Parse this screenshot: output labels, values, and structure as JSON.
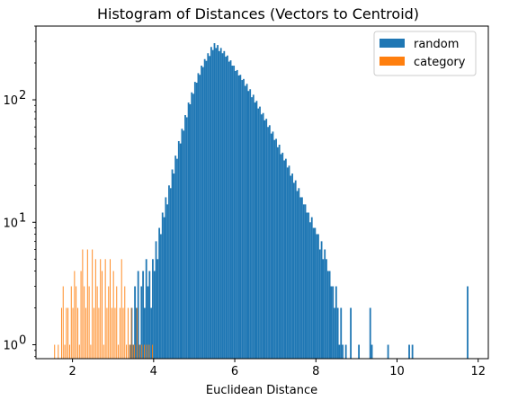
{
  "chart_data": {
    "type": "bar",
    "title": "Histogram of Distances (Vectors to Centroid)",
    "xlabel": "Euclidean Distance",
    "ylabel": "",
    "xlim": [
      1.1,
      12.25
    ],
    "ylim": [
      0.77,
      400
    ],
    "yscale": "log",
    "grid": false,
    "legend_position": "top-right",
    "x_ticks": [
      2,
      4,
      6,
      8,
      10,
      12
    ],
    "x_tick_labels": [
      "2",
      "4",
      "6",
      "8",
      "10",
      "12"
    ],
    "y_ticks": [
      1,
      10,
      100
    ],
    "y_tick_labels": [
      "10",
      "10",
      "10"
    ],
    "y_tick_exponents": [
      "0",
      "1",
      "2"
    ],
    "series": [
      {
        "name": "random",
        "color": "#1f77b4",
        "bin_width": 0.04,
        "bins": [
          [
            3.4,
            1
          ],
          [
            3.44,
            2
          ],
          [
            3.48,
            1
          ],
          [
            3.52,
            3
          ],
          [
            3.56,
            2
          ],
          [
            3.6,
            4
          ],
          [
            3.64,
            1
          ],
          [
            3.68,
            3
          ],
          [
            3.72,
            4
          ],
          [
            3.76,
            2
          ],
          [
            3.8,
            5
          ],
          [
            3.84,
            3
          ],
          [
            3.88,
            4
          ],
          [
            3.92,
            2
          ],
          [
            3.96,
            5
          ],
          [
            4.0,
            4
          ],
          [
            4.04,
            7
          ],
          [
            4.08,
            5
          ],
          [
            4.12,
            9
          ],
          [
            4.16,
            8
          ],
          [
            4.2,
            12
          ],
          [
            4.24,
            11
          ],
          [
            4.28,
            16
          ],
          [
            4.32,
            14
          ],
          [
            4.36,
            20
          ],
          [
            4.4,
            19
          ],
          [
            4.44,
            27
          ],
          [
            4.48,
            25
          ],
          [
            4.52,
            35
          ],
          [
            4.56,
            33
          ],
          [
            4.6,
            46
          ],
          [
            4.64,
            44
          ],
          [
            4.68,
            58
          ],
          [
            4.72,
            56
          ],
          [
            4.76,
            75
          ],
          [
            4.8,
            72
          ],
          [
            4.84,
            95
          ],
          [
            4.88,
            92
          ],
          [
            4.92,
            115
          ],
          [
            4.96,
            112
          ],
          [
            5.0,
            140
          ],
          [
            5.04,
            138
          ],
          [
            5.08,
            165
          ],
          [
            5.12,
            160
          ],
          [
            5.16,
            190
          ],
          [
            5.2,
            185
          ],
          [
            5.24,
            215
          ],
          [
            5.28,
            208
          ],
          [
            5.32,
            240
          ],
          [
            5.36,
            228
          ],
          [
            5.4,
            270
          ],
          [
            5.44,
            255
          ],
          [
            5.48,
            290
          ],
          [
            5.52,
            265
          ],
          [
            5.56,
            280
          ],
          [
            5.6,
            250
          ],
          [
            5.64,
            265
          ],
          [
            5.68,
            240
          ],
          [
            5.72,
            250
          ],
          [
            5.76,
            225
          ],
          [
            5.8,
            230
          ],
          [
            5.84,
            205
          ],
          [
            5.88,
            210
          ],
          [
            5.92,
            190
          ],
          [
            5.96,
            190
          ],
          [
            6.0,
            172
          ],
          [
            6.04,
            175
          ],
          [
            6.08,
            158
          ],
          [
            6.12,
            160
          ],
          [
            6.16,
            145
          ],
          [
            6.2,
            148
          ],
          [
            6.24,
            130
          ],
          [
            6.28,
            135
          ],
          [
            6.32,
            118
          ],
          [
            6.36,
            122
          ],
          [
            6.4,
            105
          ],
          [
            6.44,
            110
          ],
          [
            6.48,
            95
          ],
          [
            6.52,
            98
          ],
          [
            6.56,
            85
          ],
          [
            6.6,
            88
          ],
          [
            6.64,
            76
          ],
          [
            6.68,
            78
          ],
          [
            6.72,
            68
          ],
          [
            6.76,
            70
          ],
          [
            6.8,
            60
          ],
          [
            6.84,
            62
          ],
          [
            6.88,
            53
          ],
          [
            6.92,
            55
          ],
          [
            6.96,
            47
          ],
          [
            7.0,
            48
          ],
          [
            7.04,
            41
          ],
          [
            7.08,
            43
          ],
          [
            7.12,
            36
          ],
          [
            7.16,
            37
          ],
          [
            7.2,
            32
          ],
          [
            7.24,
            33
          ],
          [
            7.28,
            28
          ],
          [
            7.32,
            29
          ],
          [
            7.36,
            24
          ],
          [
            7.4,
            25
          ],
          [
            7.44,
            21
          ],
          [
            7.48,
            22
          ],
          [
            7.52,
            18
          ],
          [
            7.56,
            19
          ],
          [
            7.6,
            16
          ],
          [
            7.64,
            16
          ],
          [
            7.68,
            14
          ],
          [
            7.72,
            14
          ],
          [
            7.76,
            12
          ],
          [
            7.8,
            12
          ],
          [
            7.84,
            10
          ],
          [
            7.88,
            11
          ],
          [
            7.92,
            9
          ],
          [
            7.96,
            9
          ],
          [
            8.0,
            8
          ],
          [
            8.04,
            8
          ],
          [
            8.08,
            6
          ],
          [
            8.12,
            7
          ],
          [
            8.16,
            5
          ],
          [
            8.2,
            6
          ],
          [
            8.24,
            5
          ],
          [
            8.28,
            4
          ],
          [
            8.32,
            4
          ],
          [
            8.36,
            3
          ],
          [
            8.4,
            3
          ],
          [
            8.44,
            2
          ],
          [
            8.48,
            3
          ],
          [
            8.52,
            2
          ],
          [
            8.56,
            1
          ],
          [
            8.6,
            2
          ],
          [
            8.64,
            1
          ],
          [
            8.72,
            1
          ],
          [
            8.84,
            2
          ],
          [
            9.04,
            1
          ],
          [
            9.32,
            2
          ],
          [
            9.36,
            1
          ],
          [
            9.76,
            1
          ],
          [
            10.28,
            1
          ],
          [
            10.36,
            1
          ],
          [
            11.72,
            3
          ]
        ]
      },
      {
        "name": "category",
        "color": "#ff7f0e",
        "bin_width": 0.015,
        "bins": [
          [
            1.55,
            1
          ],
          [
            1.64,
            1
          ],
          [
            1.72,
            2
          ],
          [
            1.76,
            3
          ],
          [
            1.8,
            1
          ],
          [
            1.84,
            2
          ],
          [
            1.88,
            2
          ],
          [
            1.92,
            1
          ],
          [
            1.96,
            3
          ],
          [
            2.0,
            2
          ],
          [
            2.04,
            4
          ],
          [
            2.08,
            3
          ],
          [
            2.12,
            2
          ],
          [
            2.16,
            1
          ],
          [
            2.2,
            4
          ],
          [
            2.24,
            6
          ],
          [
            2.28,
            3
          ],
          [
            2.32,
            2
          ],
          [
            2.36,
            6
          ],
          [
            2.4,
            3
          ],
          [
            2.44,
            1
          ],
          [
            2.48,
            6
          ],
          [
            2.52,
            2
          ],
          [
            2.56,
            5
          ],
          [
            2.6,
            3
          ],
          [
            2.64,
            2
          ],
          [
            2.68,
            5
          ],
          [
            2.72,
            4
          ],
          [
            2.76,
            1
          ],
          [
            2.8,
            5
          ],
          [
            2.84,
            2
          ],
          [
            2.88,
            3
          ],
          [
            2.92,
            5
          ],
          [
            2.96,
            2
          ],
          [
            3.0,
            4
          ],
          [
            3.04,
            2
          ],
          [
            3.08,
            3
          ],
          [
            3.12,
            1
          ],
          [
            3.16,
            2
          ],
          [
            3.2,
            5
          ],
          [
            3.24,
            2
          ],
          [
            3.28,
            3
          ],
          [
            3.32,
            1
          ],
          [
            3.36,
            2
          ],
          [
            3.4,
            1
          ],
          [
            3.44,
            2
          ],
          [
            3.48,
            1
          ],
          [
            3.52,
            1
          ],
          [
            3.58,
            2
          ],
          [
            3.64,
            1
          ],
          [
            3.7,
            1
          ],
          [
            3.76,
            1
          ],
          [
            3.82,
            1
          ],
          [
            3.88,
            1
          ],
          [
            3.96,
            1
          ]
        ]
      }
    ]
  }
}
